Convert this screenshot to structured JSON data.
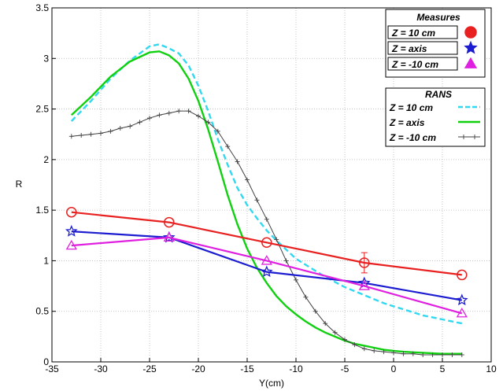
{
  "chart_data": {
    "type": "line",
    "title": "",
    "xlabel": "Y(cm)",
    "ylabel": "R",
    "xlim": [
      -35,
      10
    ],
    "ylim": [
      0,
      3.5
    ],
    "xticks": [
      -35,
      -30,
      -25,
      -20,
      -15,
      -10,
      -5,
      0,
      5,
      10
    ],
    "yticks": [
      0,
      0.5,
      1,
      1.5,
      2,
      2.5,
      3,
      3.5
    ],
    "grid": true,
    "legend_position": "top-right",
    "legend_groups": [
      {
        "title": "Measures",
        "entries": [
          "Z = 10 cm",
          "Z = axis",
          "Z = -10 cm"
        ]
      },
      {
        "title": "RANS",
        "entries": [
          "Z = 10 cm",
          "Z = axis",
          "Z = -10 cm"
        ]
      }
    ],
    "series": [
      {
        "name": "Z = 10 cm",
        "group": "Measures",
        "color": "#e82020",
        "marker": "circle",
        "style": "solid",
        "x": [
          -33,
          -23,
          -13,
          -3,
          7
        ],
        "y": [
          1.48,
          1.38,
          1.18,
          0.98,
          0.86
        ],
        "err": [
          0,
          0,
          0,
          0.1,
          0
        ]
      },
      {
        "name": "Z = axis",
        "group": "Measures",
        "color": "#1c1cd0",
        "marker": "star",
        "style": "solid",
        "x": [
          -33,
          -23,
          -13,
          -3,
          7
        ],
        "y": [
          1.29,
          1.23,
          0.89,
          0.78,
          0.61
        ]
      },
      {
        "name": "Z = -10 cm",
        "group": "Measures",
        "color": "#e020e0",
        "marker": "triangle",
        "style": "solid",
        "x": [
          -33,
          -23,
          -13,
          -3,
          7
        ],
        "y": [
          1.15,
          1.23,
          1.0,
          0.75,
          0.48
        ]
      },
      {
        "name": "Z = 10 cm",
        "group": "RANS",
        "color": "#30d8f0",
        "marker": "none",
        "style": "dashed",
        "x": [
          -33,
          -31,
          -29,
          -27,
          -25,
          -24,
          -23,
          -22,
          -21,
          -20,
          -19,
          -18,
          -17,
          -16,
          -15,
          -14,
          -13,
          -12,
          -11,
          -10,
          -9,
          -8,
          -7,
          -6,
          -5,
          -4,
          -3,
          -2,
          -1,
          0,
          1,
          2,
          3,
          4,
          5,
          6,
          7
        ],
        "y": [
          2.38,
          2.58,
          2.8,
          2.98,
          3.12,
          3.14,
          3.1,
          3.05,
          2.93,
          2.73,
          2.48,
          2.2,
          1.95,
          1.72,
          1.55,
          1.42,
          1.3,
          1.2,
          1.11,
          1.02,
          0.96,
          0.9,
          0.84,
          0.79,
          0.74,
          0.7,
          0.66,
          0.62,
          0.58,
          0.55,
          0.52,
          0.49,
          0.46,
          0.44,
          0.42,
          0.4,
          0.38
        ]
      },
      {
        "name": "Z = axis",
        "group": "RANS",
        "color": "#10d010",
        "marker": "none",
        "style": "solid",
        "x": [
          -33,
          -31,
          -29,
          -27,
          -25,
          -24,
          -23,
          -22,
          -21,
          -20,
          -19,
          -18,
          -17,
          -16,
          -15,
          -14,
          -13,
          -12,
          -11,
          -10,
          -9,
          -8,
          -7,
          -6,
          -5,
          -4,
          -3,
          -2,
          -1,
          0,
          1,
          2,
          3,
          4,
          5,
          6,
          7
        ],
        "y": [
          2.44,
          2.62,
          2.82,
          2.97,
          3.06,
          3.07,
          3.03,
          2.95,
          2.8,
          2.58,
          2.3,
          1.98,
          1.65,
          1.36,
          1.12,
          0.93,
          0.78,
          0.65,
          0.55,
          0.47,
          0.4,
          0.34,
          0.29,
          0.25,
          0.21,
          0.18,
          0.16,
          0.14,
          0.12,
          0.11,
          0.1,
          0.095,
          0.09,
          0.085,
          0.08,
          0.08,
          0.08
        ]
      },
      {
        "name": "Z = -10 cm",
        "group": "RANS",
        "color": "#404040",
        "marker": "plus",
        "style": "solid",
        "x": [
          -33,
          -32,
          -31,
          -30,
          -29,
          -28,
          -27,
          -26,
          -25,
          -24,
          -23,
          -22,
          -21,
          -20,
          -19,
          -18,
          -17,
          -16,
          -15,
          -14,
          -13,
          -12,
          -11,
          -10,
          -9,
          -8,
          -7,
          -6,
          -5,
          -4,
          -3,
          -2,
          -1,
          0,
          1,
          2,
          3,
          4,
          5,
          6,
          7
        ],
        "y": [
          2.23,
          2.24,
          2.25,
          2.26,
          2.28,
          2.31,
          2.33,
          2.37,
          2.41,
          2.44,
          2.46,
          2.48,
          2.48,
          2.43,
          2.37,
          2.28,
          2.13,
          1.98,
          1.8,
          1.6,
          1.41,
          1.21,
          1.0,
          0.81,
          0.64,
          0.5,
          0.38,
          0.29,
          0.22,
          0.17,
          0.13,
          0.11,
          0.1,
          0.09,
          0.08,
          0.08,
          0.07,
          0.07,
          0.07,
          0.07,
          0.07
        ]
      }
    ]
  }
}
